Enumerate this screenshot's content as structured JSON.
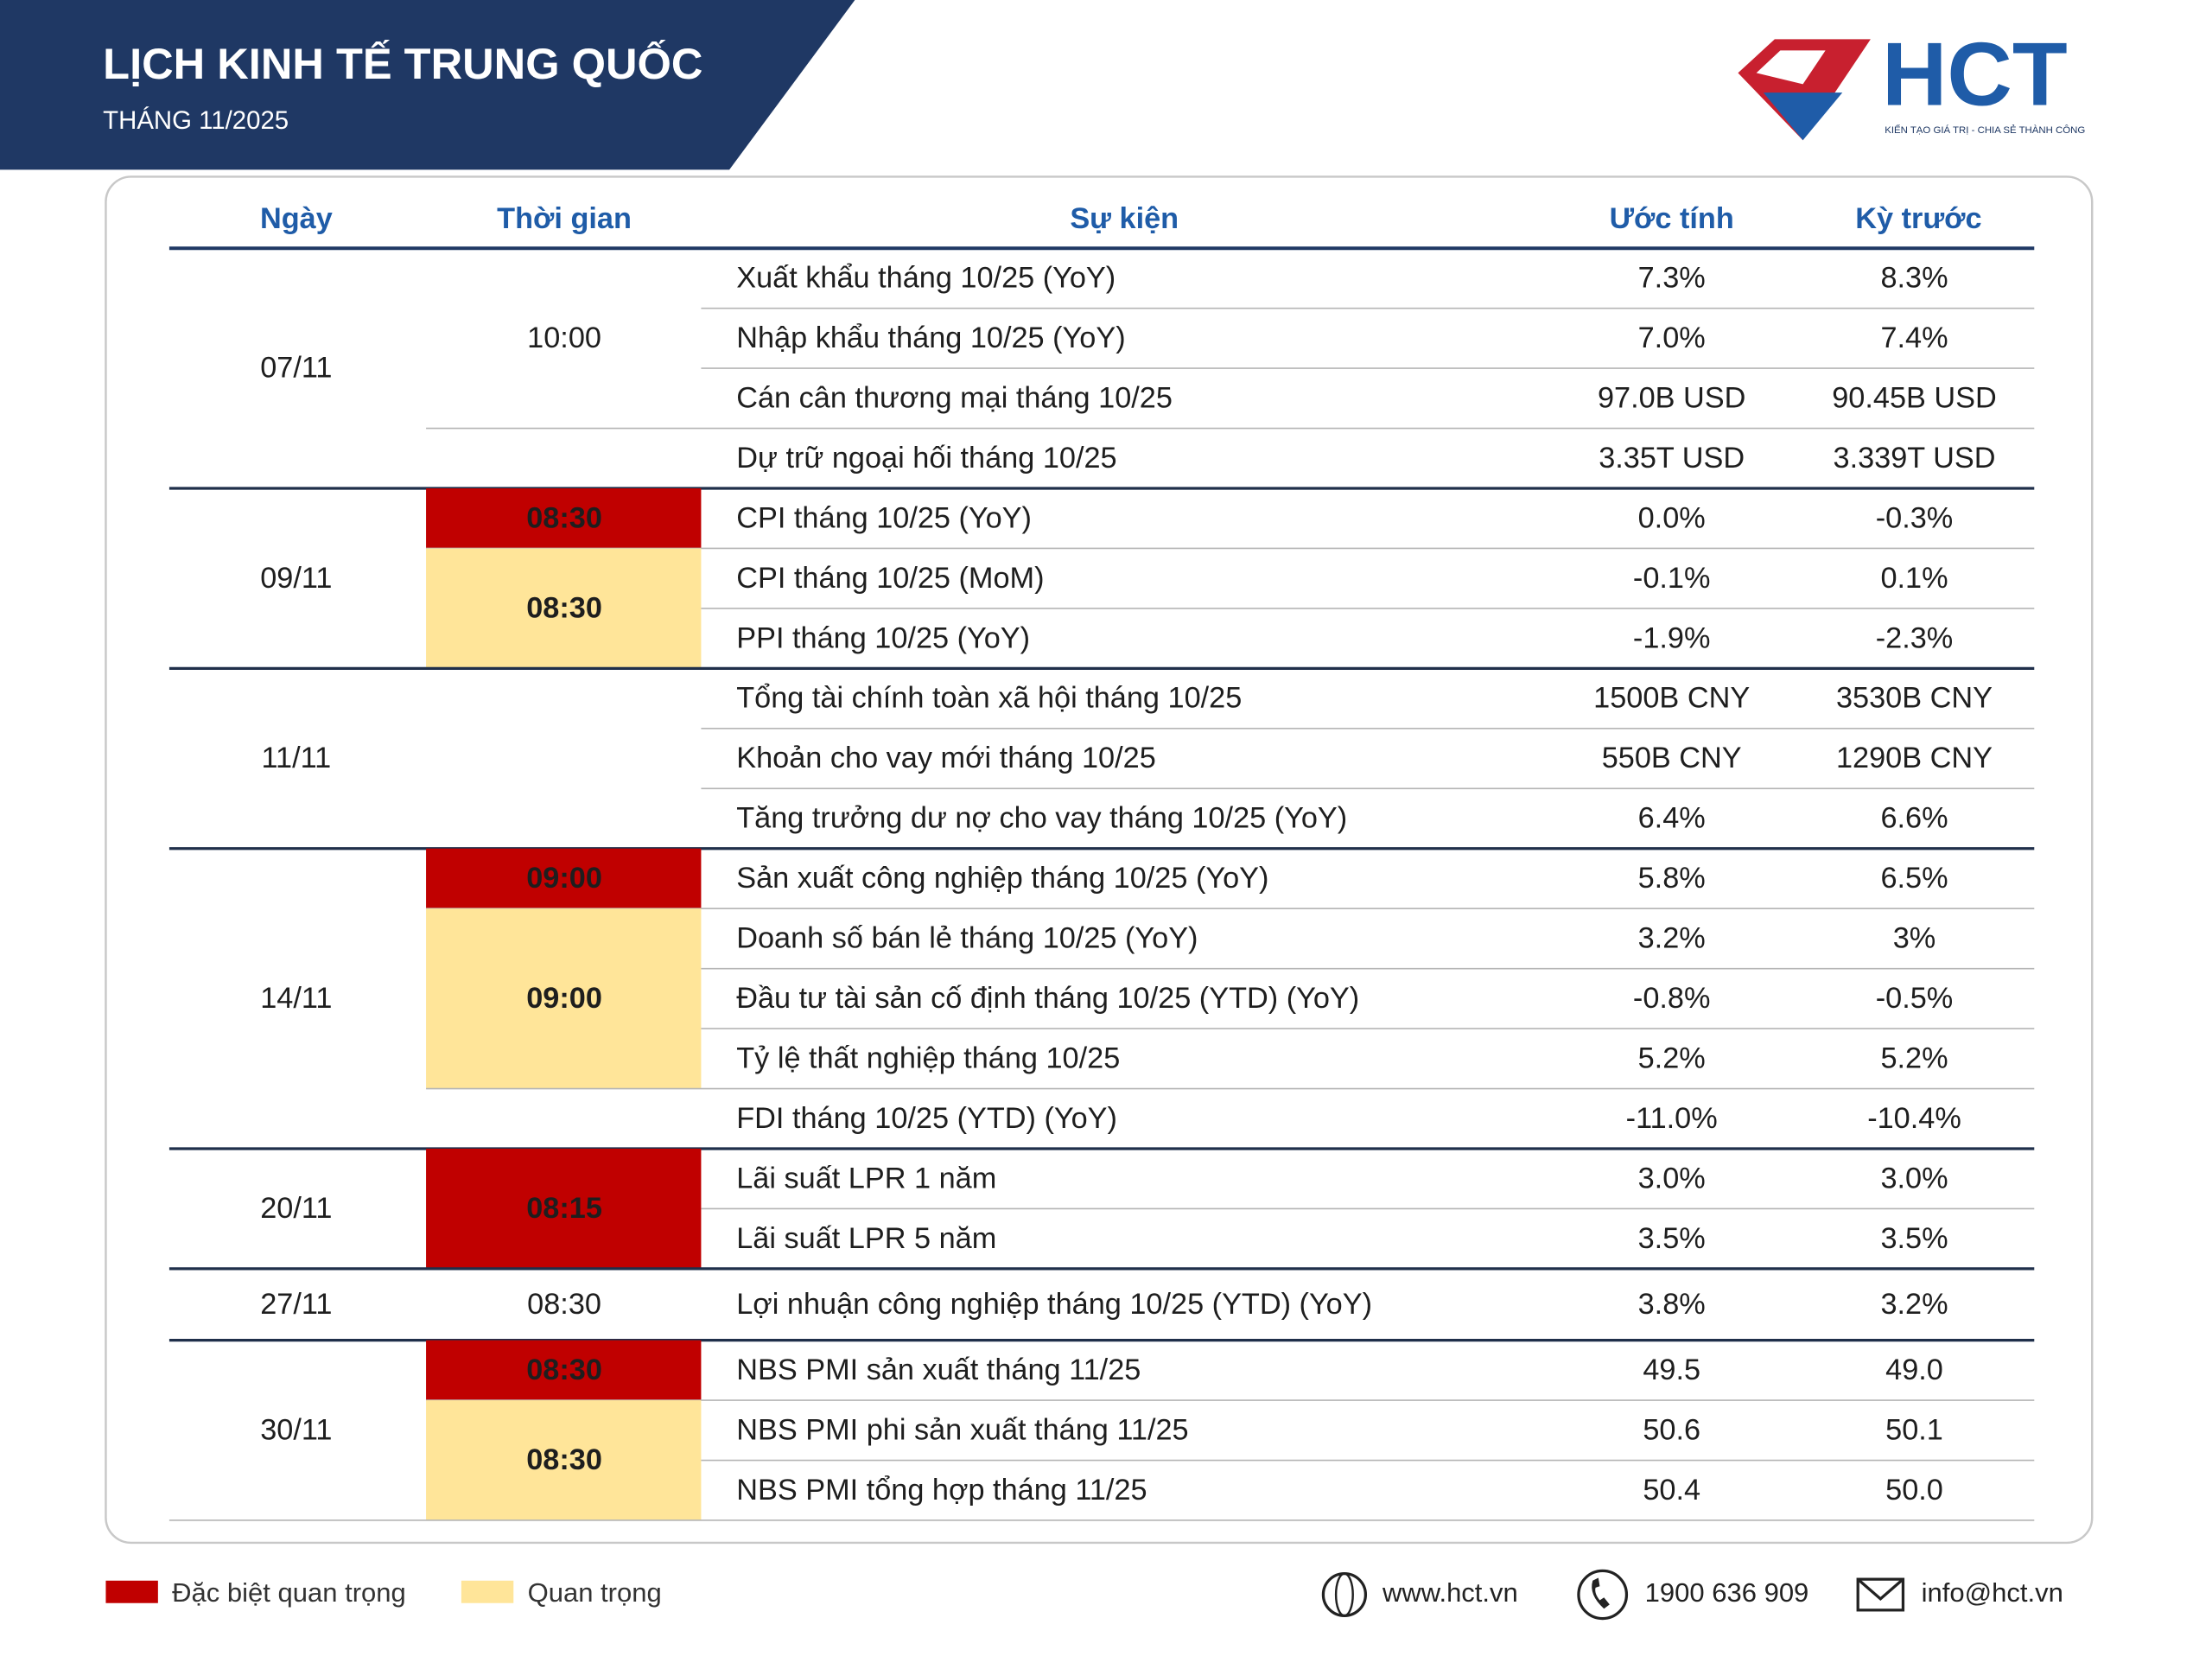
{
  "header": {
    "title": "LỊCH KINH TẾ TRUNG QUỐC",
    "subtitle": "THÁNG 11/2025",
    "logo": "HCT",
    "tagline": "KIẾN TẠO GIÁ TRỊ - CHIA SẺ THÀNH CÔNG"
  },
  "table": {
    "headers": [
      "Ngày",
      "Thời gian",
      "Sự kiện",
      "Ước tính",
      "Kỳ trước"
    ],
    "groups": [
      {
        "date": "07/11",
        "slots": [
          {
            "time": "10:00",
            "color": null,
            "events": [
              {
                "event": "Xuất khẩu tháng 10/25 (YoY)",
                "estimate": "7.3%",
                "previous": "8.3%"
              },
              {
                "event": "Nhập khẩu tháng 10/25 (YoY)",
                "estimate": "7.0%",
                "previous": "7.4%"
              },
              {
                "event": "Cán cân thương mại tháng 10/25",
                "estimate": "97.0B USD",
                "previous": "90.45B USD"
              }
            ]
          },
          {
            "time": null,
            "color": null,
            "events": [
              {
                "event": "Dự trữ ngoại hối tháng 10/25",
                "estimate": "3.35T USD",
                "previous": "3.339T USD"
              }
            ]
          }
        ]
      },
      {
        "date": "09/11",
        "slots": [
          {
            "time": "08:30",
            "color": "#c00000",
            "events": [
              {
                "event": "CPI tháng 10/25 (YoY)",
                "estimate": "0.0%",
                "previous": "-0.3%"
              }
            ]
          },
          {
            "time": "08:30",
            "color": "#ffe599",
            "events": [
              {
                "event": "CPI tháng 10/25 (MoM)",
                "estimate": "-0.1%",
                "previous": "0.1%"
              },
              {
                "event": "PPI tháng 10/25 (YoY)",
                "estimate": "-1.9%",
                "previous": "-2.3%"
              }
            ]
          }
        ]
      },
      {
        "date": "11/11",
        "slots": [
          {
            "time": null,
            "color": null,
            "events": [
              {
                "event": "Tổng tài chính toàn xã hội tháng 10/25",
                "estimate": "1500B CNY",
                "previous": "3530B CNY"
              },
              {
                "event": "Khoản cho vay mới tháng 10/25",
                "estimate": "550B CNY",
                "previous": "1290B CNY"
              },
              {
                "event": "Tăng trưởng dư nợ cho vay tháng 10/25 (YoY)",
                "estimate": "6.4%",
                "previous": "6.6%"
              }
            ]
          }
        ]
      },
      {
        "date": "14/11",
        "slots": [
          {
            "time": "09:00",
            "color": "#c00000",
            "events": [
              {
                "event": "Sản xuất công nghiệp tháng 10/25 (YoY)",
                "estimate": "5.8%",
                "previous": "6.5%"
              }
            ]
          },
          {
            "time": "09:00",
            "color": "#ffe599",
            "events": [
              {
                "event": "Doanh số bán lẻ tháng 10/25 (YoY)",
                "estimate": "3.2%",
                "previous": "3%"
              },
              {
                "event": "Đầu tư tài sản cố định tháng 10/25 (YTD) (YoY)",
                "estimate": "-0.8%",
                "previous": "-0.5%"
              },
              {
                "event": "Tỷ lệ thất nghiệp tháng 10/25",
                "estimate": "5.2%",
                "previous": "5.2%"
              }
            ]
          },
          {
            "time": null,
            "color": null,
            "events": [
              {
                "event": "FDI tháng 10/25 (YTD) (YoY)",
                "estimate": "-11.0%",
                "previous": "-10.4%"
              }
            ]
          }
        ]
      },
      {
        "date": "20/11",
        "slots": [
          {
            "time": "08:15",
            "color": "#c00000",
            "events": [
              {
                "event": "Lãi suất LPR 1 năm",
                "estimate": "3.0%",
                "previous": "3.0%"
              },
              {
                "event": "Lãi suất LPR 5 năm",
                "estimate": "3.5%",
                "previous": "3.5%"
              }
            ]
          }
        ]
      },
      {
        "date": "27/11",
        "slots": [
          {
            "time": "08:30",
            "color": null,
            "events": [
              {
                "event": "Lợi nhuận công nghiệp tháng 10/25 (YTD) (YoY)",
                "estimate": "3.8%",
                "previous": "3.2%"
              }
            ]
          }
        ]
      },
      {
        "date": "30/11",
        "slots": [
          {
            "time": "08:30",
            "color": "#c00000",
            "events": [
              {
                "event": "NBS PMI sản xuất tháng 11/25",
                "estimate": "49.5",
                "previous": "49.0"
              }
            ]
          },
          {
            "time": "08:30",
            "color": "#ffe599",
            "events": [
              {
                "event": "NBS PMI phi sản xuất tháng 11/25",
                "estimate": "50.6",
                "previous": "50.1"
              },
              {
                "event": "NBS PMI tổng hợp tháng 11/25",
                "estimate": "50.4",
                "previous": "50.0"
              }
            ]
          }
        ]
      }
    ]
  },
  "legend": [
    {
      "label": "Đặc biệt quan trọng",
      "color": "#c00000"
    },
    {
      "label": "Quan trọng",
      "color": "#ffe599"
    }
  ],
  "contacts": {
    "web": "www.hct.vn",
    "phone": "1900 636 909",
    "email": "info@hct.vn"
  }
}
